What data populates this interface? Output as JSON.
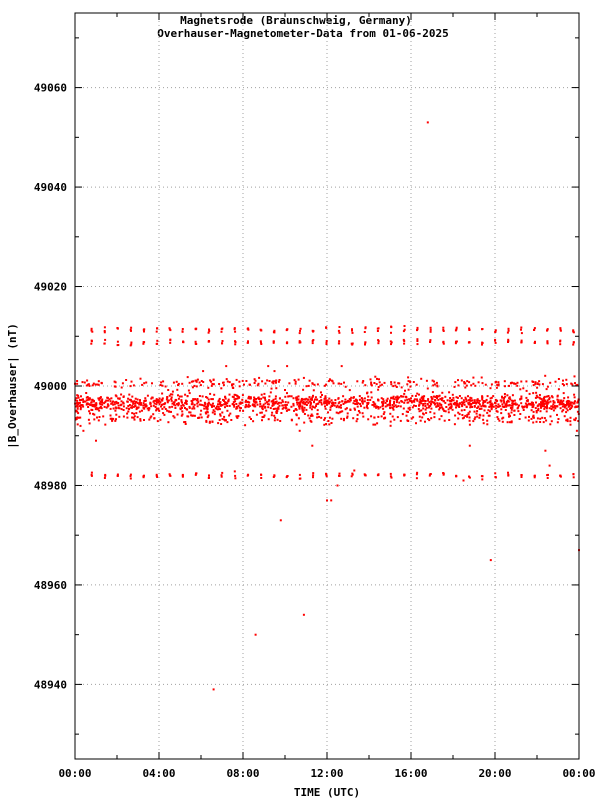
{
  "chart_data": {
    "type": "scatter",
    "title": "Magnetsrode (Braunschweig, Germany)",
    "subtitle": "Overhauser-Magnetometer-Data from 01-06-2025",
    "xlabel": "TIME (UTC)",
    "ylabel": "|B_Overhauser| (nT)",
    "x_ticks": [
      "00:00",
      "04:00",
      "08:00",
      "12:00",
      "16:00",
      "20:00",
      "00:00"
    ],
    "x_tick_hours": [
      0,
      4,
      8,
      12,
      16,
      20,
      24
    ],
    "y_ticks": [
      48940,
      48960,
      48980,
      49000,
      49020,
      49040,
      49060
    ],
    "xlim_hours": [
      0,
      24
    ],
    "ylim": [
      48925,
      49075
    ],
    "grid": true,
    "marker_color": "#ff0000",
    "bands": [
      {
        "center": 48996.5,
        "spread": 1.6,
        "description": "main dense band"
      },
      {
        "center": 49000.5,
        "spread": 1.0
      },
      {
        "center": 48993.5,
        "spread": 1.0
      },
      {
        "center": 49011.3,
        "spread": 0.5
      },
      {
        "center": 49008.8,
        "spread": 0.5
      },
      {
        "center": 48982.0,
        "spread": 0.5
      }
    ],
    "outliers": [
      {
        "x": 0.1,
        "y": 49001
      },
      {
        "x": 0.4,
        "y": 48991
      },
      {
        "x": 1.0,
        "y": 48989
      },
      {
        "x": 6.1,
        "y": 49003
      },
      {
        "x": 6.6,
        "y": 48939
      },
      {
        "x": 7.2,
        "y": 49004
      },
      {
        "x": 8.6,
        "y": 48950
      },
      {
        "x": 9.2,
        "y": 49004
      },
      {
        "x": 9.5,
        "y": 49003
      },
      {
        "x": 9.8,
        "y": 48973
      },
      {
        "x": 10.1,
        "y": 49004
      },
      {
        "x": 10.7,
        "y": 48991
      },
      {
        "x": 10.9,
        "y": 48954
      },
      {
        "x": 11.3,
        "y": 48988
      },
      {
        "x": 12.0,
        "y": 48977
      },
      {
        "x": 12.2,
        "y": 48977
      },
      {
        "x": 12.5,
        "y": 48980
      },
      {
        "x": 12.7,
        "y": 49004
      },
      {
        "x": 13.3,
        "y": 48983
      },
      {
        "x": 16.8,
        "y": 49053
      },
      {
        "x": 18.5,
        "y": 48981
      },
      {
        "x": 18.8,
        "y": 48988
      },
      {
        "x": 19.8,
        "y": 48965
      },
      {
        "x": 22.4,
        "y": 48987
      },
      {
        "x": 22.6,
        "y": 48984
      },
      {
        "x": 23.9,
        "y": 48991
      },
      {
        "x": 24.0,
        "y": 48967
      }
    ]
  }
}
